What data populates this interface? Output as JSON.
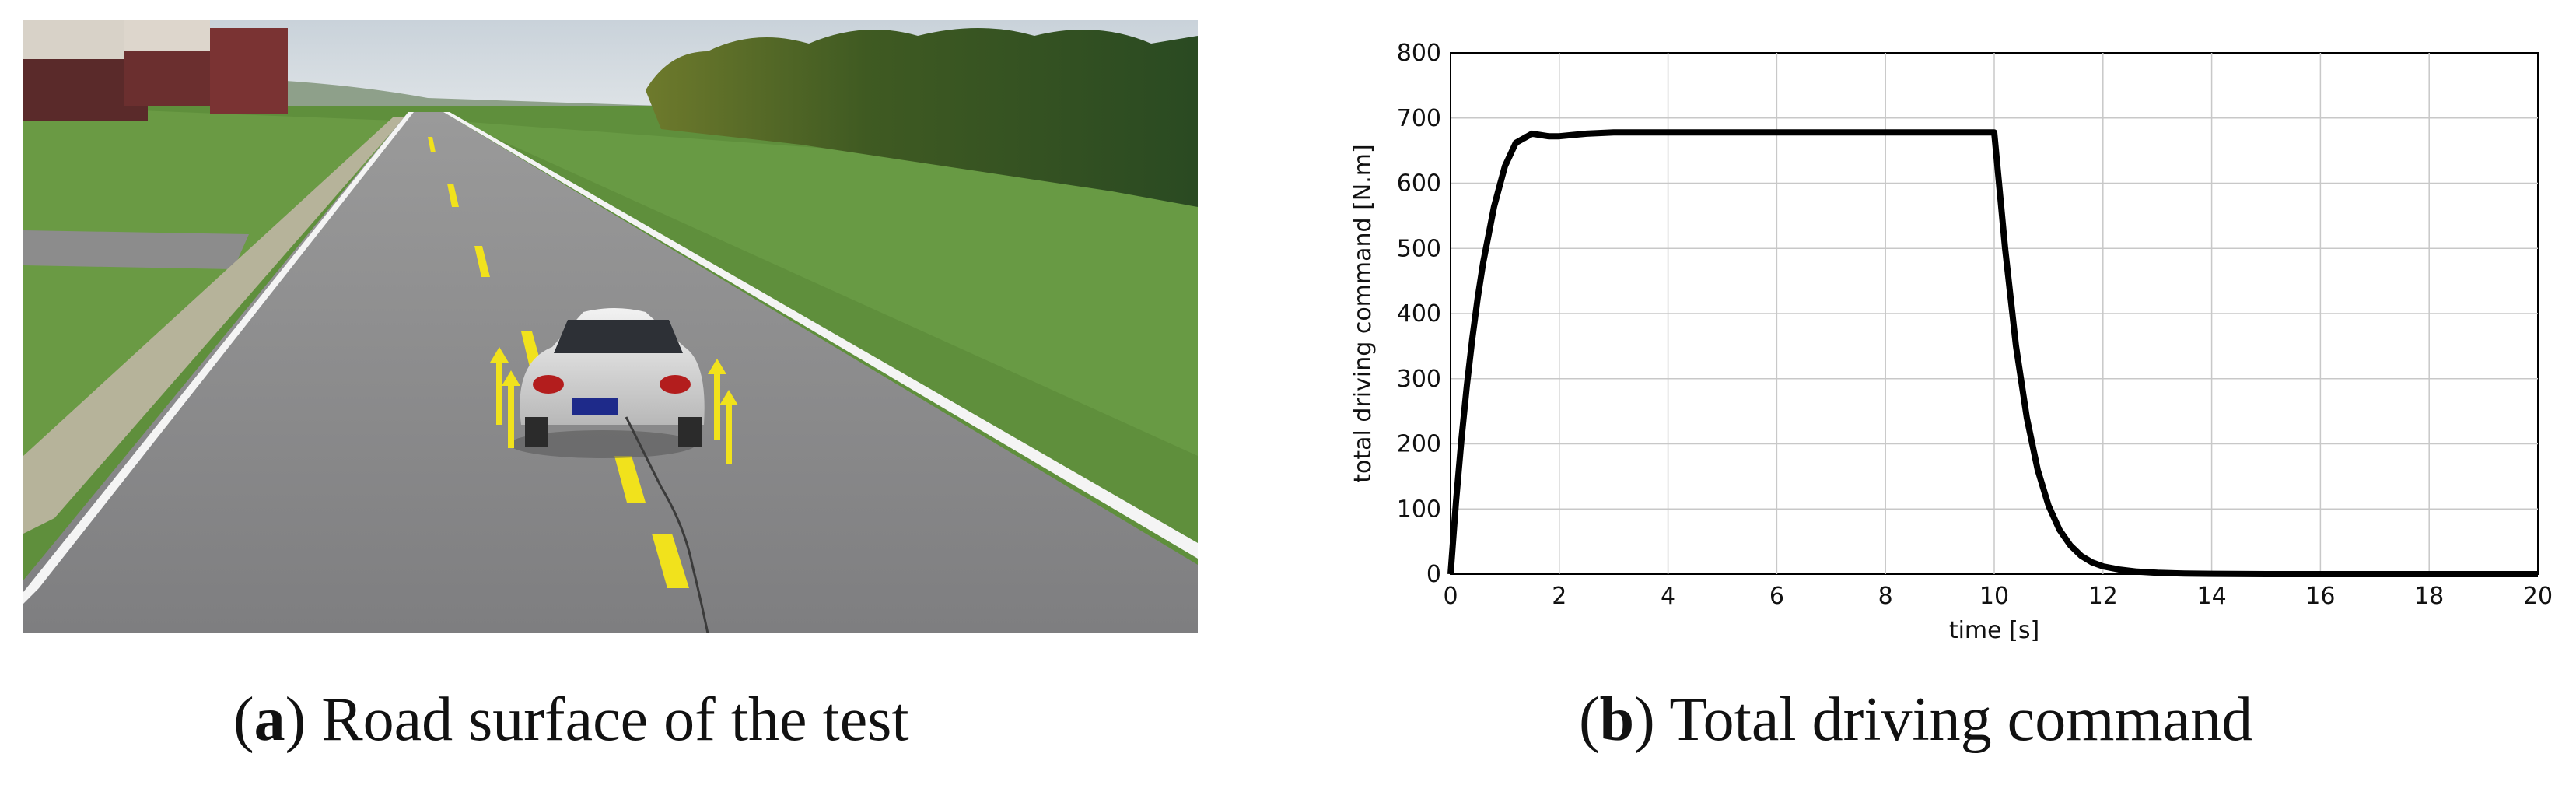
{
  "panels": {
    "a": {
      "letter": "a",
      "caption": "Road surface of the test"
    },
    "b": {
      "letter": "b",
      "caption": "Total driving command"
    }
  },
  "chart_data": {
    "type": "line",
    "title": "",
    "xlabel": "time [s]",
    "ylabel": "total driving command [N.m]",
    "xlim": [
      0,
      20
    ],
    "ylim": [
      0,
      800
    ],
    "xticks": [
      0,
      2,
      4,
      6,
      8,
      10,
      12,
      14,
      16,
      18,
      20
    ],
    "yticks": [
      0,
      100,
      200,
      300,
      400,
      500,
      600,
      700,
      800
    ],
    "grid": true,
    "series": [
      {
        "color": "#000000",
        "x": [
          0,
          0.1,
          0.2,
          0.3,
          0.4,
          0.5,
          0.6,
          0.8,
          1.0,
          1.2,
          1.5,
          1.8,
          2.0,
          2.5,
          3.0,
          3.5,
          4.0,
          5.0,
          6.0,
          7.0,
          8.0,
          9.0,
          10.0,
          10.2,
          10.4,
          10.6,
          10.8,
          11.0,
          11.2,
          11.4,
          11.6,
          11.8,
          12.0,
          12.3,
          12.6,
          13.0,
          13.5,
          14.0,
          15.0,
          16.0,
          17.0,
          18.0,
          19.0,
          20.0
        ],
        "y": [
          0,
          111,
          207,
          290,
          362,
          424,
          478,
          564,
          626,
          662,
          676,
          672,
          672,
          676,
          678,
          678,
          678,
          678,
          678,
          678,
          678,
          678,
          678,
          500,
          350,
          240,
          160,
          105,
          68,
          44,
          28,
          18,
          12,
          7,
          4,
          2,
          1,
          0.5,
          0,
          0,
          0,
          0,
          0,
          0
        ]
      }
    ]
  }
}
